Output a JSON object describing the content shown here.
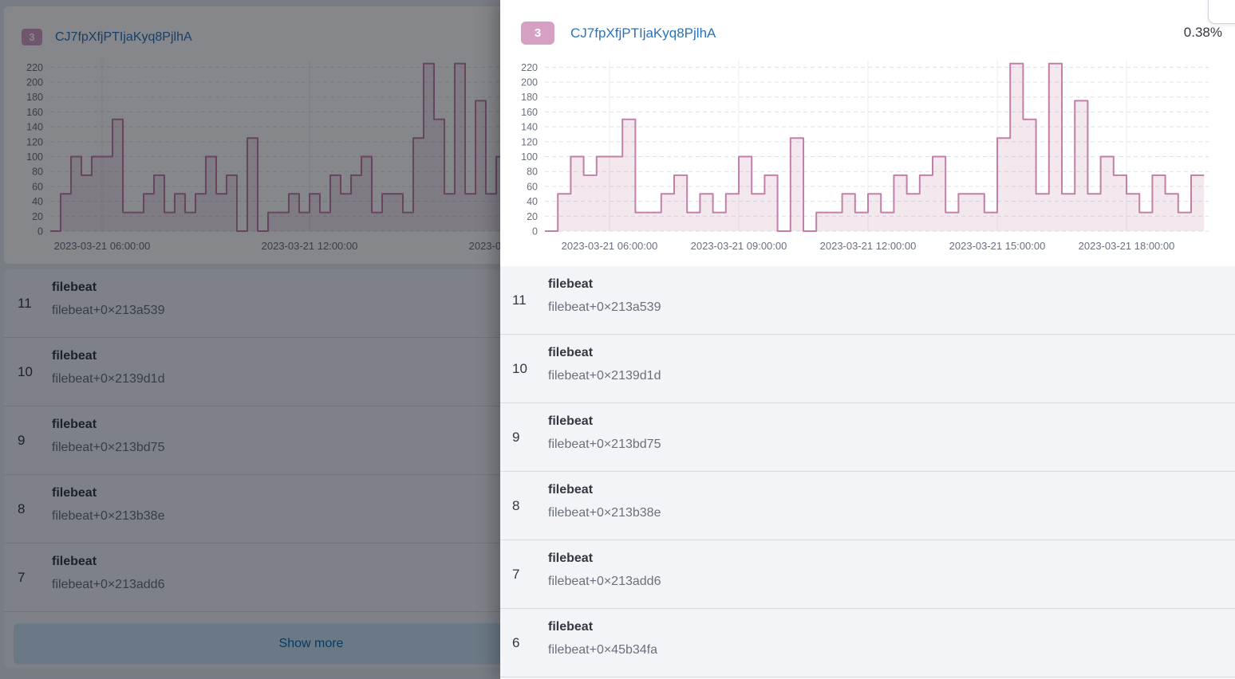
{
  "page": {
    "card": {
      "badge": "3",
      "title": "CJ7fpXfjPTIjaKyq8PjlhA"
    },
    "show_more_label": "Show more",
    "items": [
      {
        "rank": "11",
        "name": "filebeat",
        "detail": "filebeat+0×213a539"
      },
      {
        "rank": "10",
        "name": "filebeat",
        "detail": "filebeat+0×2139d1d"
      },
      {
        "rank": "9",
        "name": "filebeat",
        "detail": "filebeat+0×213bd75"
      },
      {
        "rank": "8",
        "name": "filebeat",
        "detail": "filebeat+0×213b38e"
      },
      {
        "rank": "7",
        "name": "filebeat",
        "detail": "filebeat+0×213add6"
      }
    ]
  },
  "flyout": {
    "badge": "3",
    "title": "CJ7fpXfjPTIjaKyq8PjlhA",
    "percentage": "0.38%",
    "items": [
      {
        "rank": "11",
        "name": "filebeat",
        "detail": "filebeat+0×213a539"
      },
      {
        "rank": "10",
        "name": "filebeat",
        "detail": "filebeat+0×2139d1d"
      },
      {
        "rank": "9",
        "name": "filebeat",
        "detail": "filebeat+0×213bd75"
      },
      {
        "rank": "8",
        "name": "filebeat",
        "detail": "filebeat+0×213b38e"
      },
      {
        "rank": "7",
        "name": "filebeat",
        "detail": "filebeat+0×213add6"
      },
      {
        "rank": "6",
        "name": "filebeat",
        "detail": "filebeat+0×45b34fa"
      }
    ]
  },
  "chart_data": {
    "type": "area",
    "title": "",
    "xlabel": "",
    "ylabel": "",
    "ylim": [
      0,
      230
    ],
    "grid": true,
    "yticks": [
      0,
      20,
      40,
      60,
      80,
      100,
      120,
      140,
      160,
      180,
      200,
      220
    ],
    "xticks": [
      {
        "index": 5,
        "label": "2023-03-21 06:00:00"
      },
      {
        "index": 15,
        "label": "2023-03-21 09:00:00"
      },
      {
        "index": 25,
        "label": "2023-03-21 12:00:00"
      },
      {
        "index": 35,
        "label": "2023-03-21 15:00:00"
      },
      {
        "index": 45,
        "label": "2023-03-21 18:00:00"
      }
    ],
    "values": [
      0,
      50,
      100,
      75,
      100,
      100,
      150,
      25,
      25,
      50,
      75,
      25,
      50,
      25,
      50,
      100,
      50,
      75,
      0,
      125,
      0,
      25,
      25,
      50,
      25,
      50,
      25,
      75,
      50,
      75,
      100,
      25,
      50,
      50,
      25,
      125,
      225,
      150,
      50,
      225,
      50,
      175,
      50,
      100,
      75,
      50,
      25,
      75,
      50,
      25,
      75
    ],
    "colors": {
      "stroke": "#c47fa8",
      "fill": "rgba(196,127,168,0.18)",
      "grid_dash": "#dce1ec",
      "grid_vertical": "#e9ecf3",
      "axis_text": "#69707d"
    }
  },
  "colors": {
    "badge_background": "#d5a0c3",
    "title_link": "#2a72ba",
    "percentage_text": "#343741",
    "show_more_background": "#cde2f3",
    "show_more_text": "#006bb8",
    "row_background": "#f2f4f8",
    "row_separator": "#d5dbe5"
  }
}
